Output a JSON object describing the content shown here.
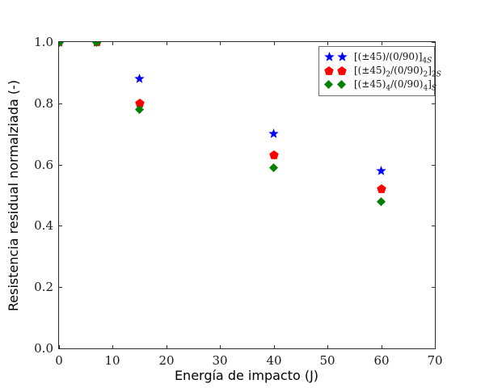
{
  "chart_data": {
    "type": "scatter",
    "title": "",
    "xlabel": "Energía de impacto (J)",
    "ylabel": "Resistencia residual normalziada (-)",
    "xlim": [
      0,
      70
    ],
    "ylim": [
      0.0,
      1.0
    ],
    "xticks": [
      "0",
      "10",
      "20",
      "30",
      "40",
      "50",
      "60",
      "70"
    ],
    "yticks": [
      "0.0",
      "0.2",
      "0.4",
      "0.6",
      "0.8",
      "1.0"
    ],
    "grid": false,
    "tick_direction": "in",
    "legend_position": "upper right",
    "series": [
      {
        "name": "[(±45)/(0/90)]4S",
        "marker": "star",
        "color": "#0000ff",
        "x": [
          0,
          7,
          15,
          40,
          60
        ],
        "y": [
          1.0,
          1.0,
          0.88,
          0.7,
          0.58
        ]
      },
      {
        "name": "[(±45)2/(0/90)2]2S",
        "marker": "pentagon",
        "color": "#ff0000",
        "x": [
          0,
          7,
          15,
          40,
          60
        ],
        "y": [
          1.0,
          1.0,
          0.8,
          0.63,
          0.52
        ]
      },
      {
        "name": "[(±45)4/(0/90)4]S",
        "marker": "diamond",
        "color": "#008000",
        "x": [
          0,
          7,
          15,
          40,
          60
        ],
        "y": [
          1.0,
          1.0,
          0.78,
          0.59,
          0.48
        ]
      }
    ],
    "legend_entries": [
      {
        "marker": "star",
        "color": "#0000ff",
        "label": "[(±45)/(0/90)]4S",
        "label_parts": [
          {
            "t": "[(±45)/(0/90)]"
          },
          {
            "t": "4",
            "sub": true
          },
          {
            "t": "S",
            "sub": true,
            "it": true
          }
        ]
      },
      {
        "marker": "pentagon",
        "color": "#ff0000",
        "label": "[(±45)2/(0/90)2]2S",
        "label_parts": [
          {
            "t": "[(±45)"
          },
          {
            "t": "2",
            "sub": true
          },
          {
            "t": "/(0/90)"
          },
          {
            "t": "2",
            "sub": true
          },
          {
            "t": "]"
          },
          {
            "t": "2",
            "sub": true
          },
          {
            "t": "S",
            "sub": true,
            "it": true
          }
        ]
      },
      {
        "marker": "diamond",
        "color": "#008000",
        "label": "[(±45)4/(0/90)4]S",
        "label_parts": [
          {
            "t": "[(±45)"
          },
          {
            "t": "4",
            "sub": true
          },
          {
            "t": "/(0/90)"
          },
          {
            "t": "4",
            "sub": true
          },
          {
            "t": "]"
          },
          {
            "t": "S",
            "sub": true,
            "it": true
          }
        ]
      }
    ]
  }
}
